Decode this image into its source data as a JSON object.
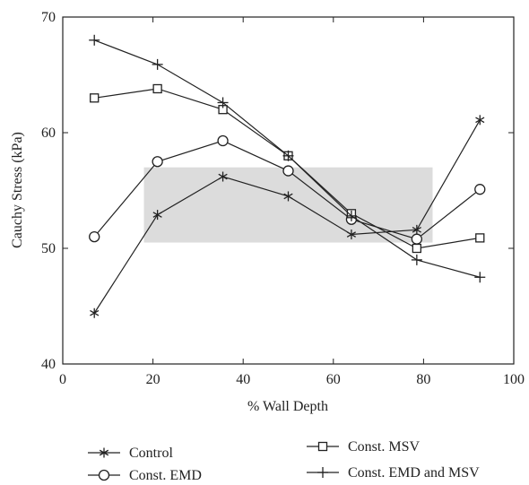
{
  "chart_data": {
    "type": "line",
    "xlabel": "% Wall Depth",
    "ylabel": "Cauchy Stress (kPa)",
    "xlim": [
      0,
      100
    ],
    "ylim": [
      40,
      70
    ],
    "xticks": [
      0,
      20,
      40,
      60,
      80,
      100
    ],
    "yticks": [
      40,
      50,
      60,
      70
    ],
    "x": [
      7,
      21,
      35.5,
      50,
      64,
      78.5,
      92.5
    ],
    "grid": false,
    "legend_position": "bottom",
    "shaded_region": {
      "x": [
        18,
        82
      ],
      "y": [
        50.5,
        57
      ],
      "color": "#dcdcdc"
    },
    "series": [
      {
        "name": "Control",
        "marker": "asterisk",
        "color": "#222222",
        "values": [
          44.4,
          52.9,
          56.2,
          54.5,
          51.2,
          51.6,
          61.1
        ]
      },
      {
        "name": "Const. EMD",
        "marker": "circle",
        "color": "#222222",
        "values": [
          51.0,
          57.5,
          59.3,
          56.7,
          52.5,
          50.8,
          55.1
        ]
      },
      {
        "name": "Const. MSV",
        "marker": "square",
        "color": "#222222",
        "values": [
          63.0,
          63.8,
          62.0,
          58.0,
          53.0,
          50.0,
          50.9
        ]
      },
      {
        "name": "Const. EMD and MSV",
        "marker": "plus",
        "color": "#222222",
        "values": [
          68.0,
          65.9,
          62.6,
          58.0,
          52.8,
          49.0,
          47.5
        ]
      }
    ]
  }
}
